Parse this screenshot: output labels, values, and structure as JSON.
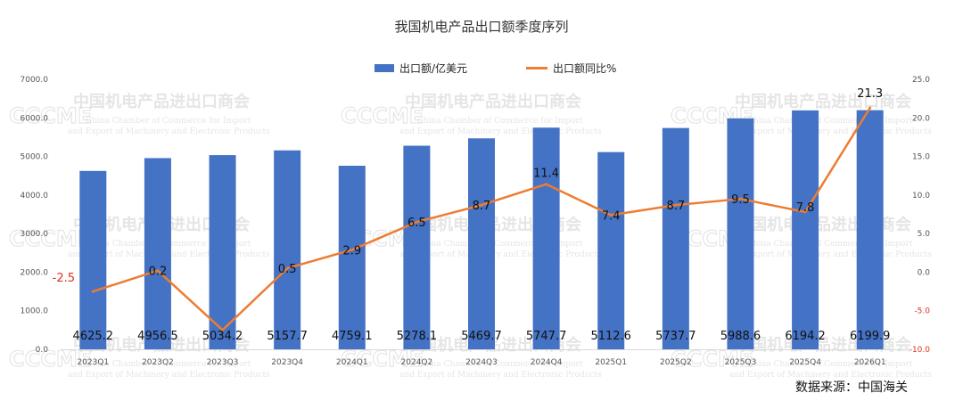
{
  "chart_data": {
    "type": "bar+line",
    "title": "我国机电产品出口额季度序列",
    "categories": [
      "2023Q1",
      "2023Q2",
      "2023Q3",
      "2023Q4",
      "2024Q1",
      "2024Q2",
      "2024Q3",
      "2024Q4",
      "2025Q1",
      "2025Q2",
      "2025Q3",
      "2025Q4",
      "2026Q1"
    ],
    "series": [
      {
        "name": "出口额/亿美元",
        "kind": "bar",
        "axis": "left",
        "color": "#4472c4",
        "values": [
          4625.2,
          4956.5,
          5034.2,
          5157.7,
          4759.1,
          5278.1,
          5469.7,
          5747.7,
          5112.6,
          5737.7,
          5988.6,
          6194.2,
          6199.9
        ],
        "labels": [
          "4625.2",
          "4956.5",
          "5034.2",
          "5157.7",
          "4759.1",
          "5278.1",
          "5469.7",
          "5747.7",
          "5112.6",
          "5737.7",
          "5988.6",
          "6194.2",
          "6199.9"
        ]
      },
      {
        "name": "出口额同比%",
        "kind": "line",
        "axis": "right",
        "color": "#ed7d31",
        "values": [
          -2.5,
          0.2,
          -7.5,
          0.5,
          2.9,
          6.5,
          8.7,
          11.4,
          7.4,
          8.7,
          9.5,
          7.8,
          21.3
        ],
        "labels": [
          "-2.5",
          "0.2",
          "",
          "0.5",
          "2.9",
          "6.5",
          "8.7",
          "11.4",
          "7.4",
          "8.7",
          "9.5",
          "7.8",
          "21.3"
        ]
      }
    ],
    "left_axis": {
      "ylim": [
        0,
        7000
      ],
      "ticks": [
        "0.0",
        "1000.0",
        "2000.0",
        "3000.0",
        "4000.0",
        "5000.0",
        "6000.0",
        "7000.0"
      ]
    },
    "right_axis": {
      "ylim": [
        -10,
        25
      ],
      "ticks": [
        "-10.0",
        "-5.0",
        "0.0",
        "5.0",
        "10.0",
        "15.0",
        "20.0",
        "25.0"
      ]
    },
    "legend_position": "top-center",
    "grid": false
  },
  "source_text": "数据来源：中国海关",
  "watermark": {
    "logo": "CCCME",
    "cn": "中国机电产品进出口商会",
    "en1": "China Chamber of Commerce for Import",
    "en2": "and Export of Machinery and Electronic Products"
  }
}
